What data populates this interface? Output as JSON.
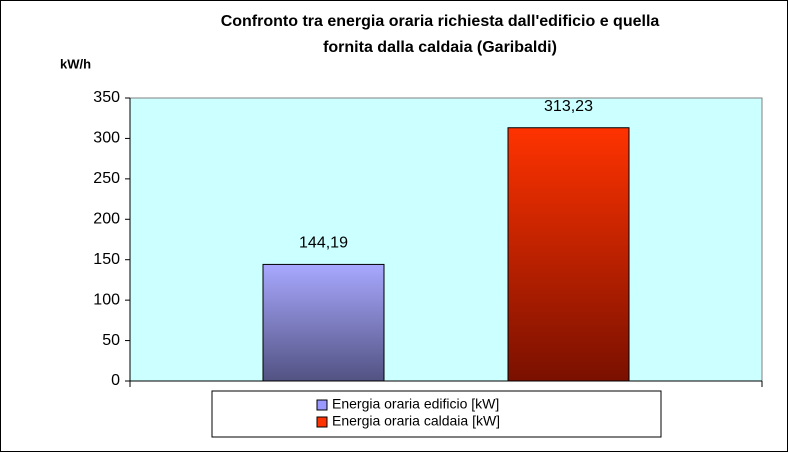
{
  "chart_data": {
    "type": "bar",
    "title": [
      "Confronto tra energia oraria richiesta dall'edificio e quella",
      "fornita dalla caldaia (Garibaldi)"
    ],
    "ylabel": "kW/h",
    "categories": [
      null
    ],
    "series": [
      {
        "name": "Energia oraria edificio [kW]",
        "color": "#9999ff",
        "values": [
          144.19
        ],
        "value_labels": [
          "144,19"
        ]
      },
      {
        "name": "Energia oraria caldaia [kW]",
        "color": "#ff3300",
        "values": [
          313.23
        ],
        "value_labels": [
          "313,23"
        ]
      }
    ],
    "ylim": [
      0,
      350
    ],
    "yticks": [
      0,
      50,
      100,
      150,
      200,
      250,
      300,
      350
    ],
    "legend": "bottom"
  }
}
